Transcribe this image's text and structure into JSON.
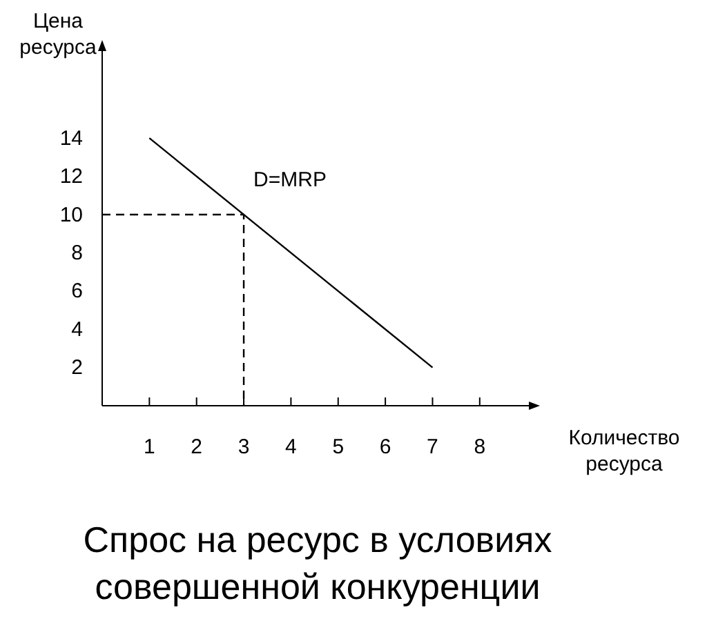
{
  "chart_data": {
    "type": "line",
    "title": "Спрос на ресурс в условиях совершенной конкуренции",
    "xlabel": "Количество ресурса",
    "ylabel": "Цена ресурса",
    "xlim": [
      0,
      9.1
    ],
    "ylim": [
      0,
      18.7
    ],
    "xticks": [
      1,
      2,
      3,
      4,
      5,
      6,
      7,
      8
    ],
    "yticks": [
      2,
      4,
      6,
      8,
      10,
      12,
      14
    ],
    "grid": false,
    "series": [
      {
        "color": "#000000",
        "x": [
          1,
          7
        ],
        "values": [
          14,
          2
        ],
        "line_style": "solid"
      },
      {
        "color": "#000000",
        "x": [
          0,
          3,
          3
        ],
        "values": [
          10,
          10,
          0
        ],
        "line_style": "dashed"
      }
    ],
    "annotations": [
      "D=MRP"
    ]
  }
}
